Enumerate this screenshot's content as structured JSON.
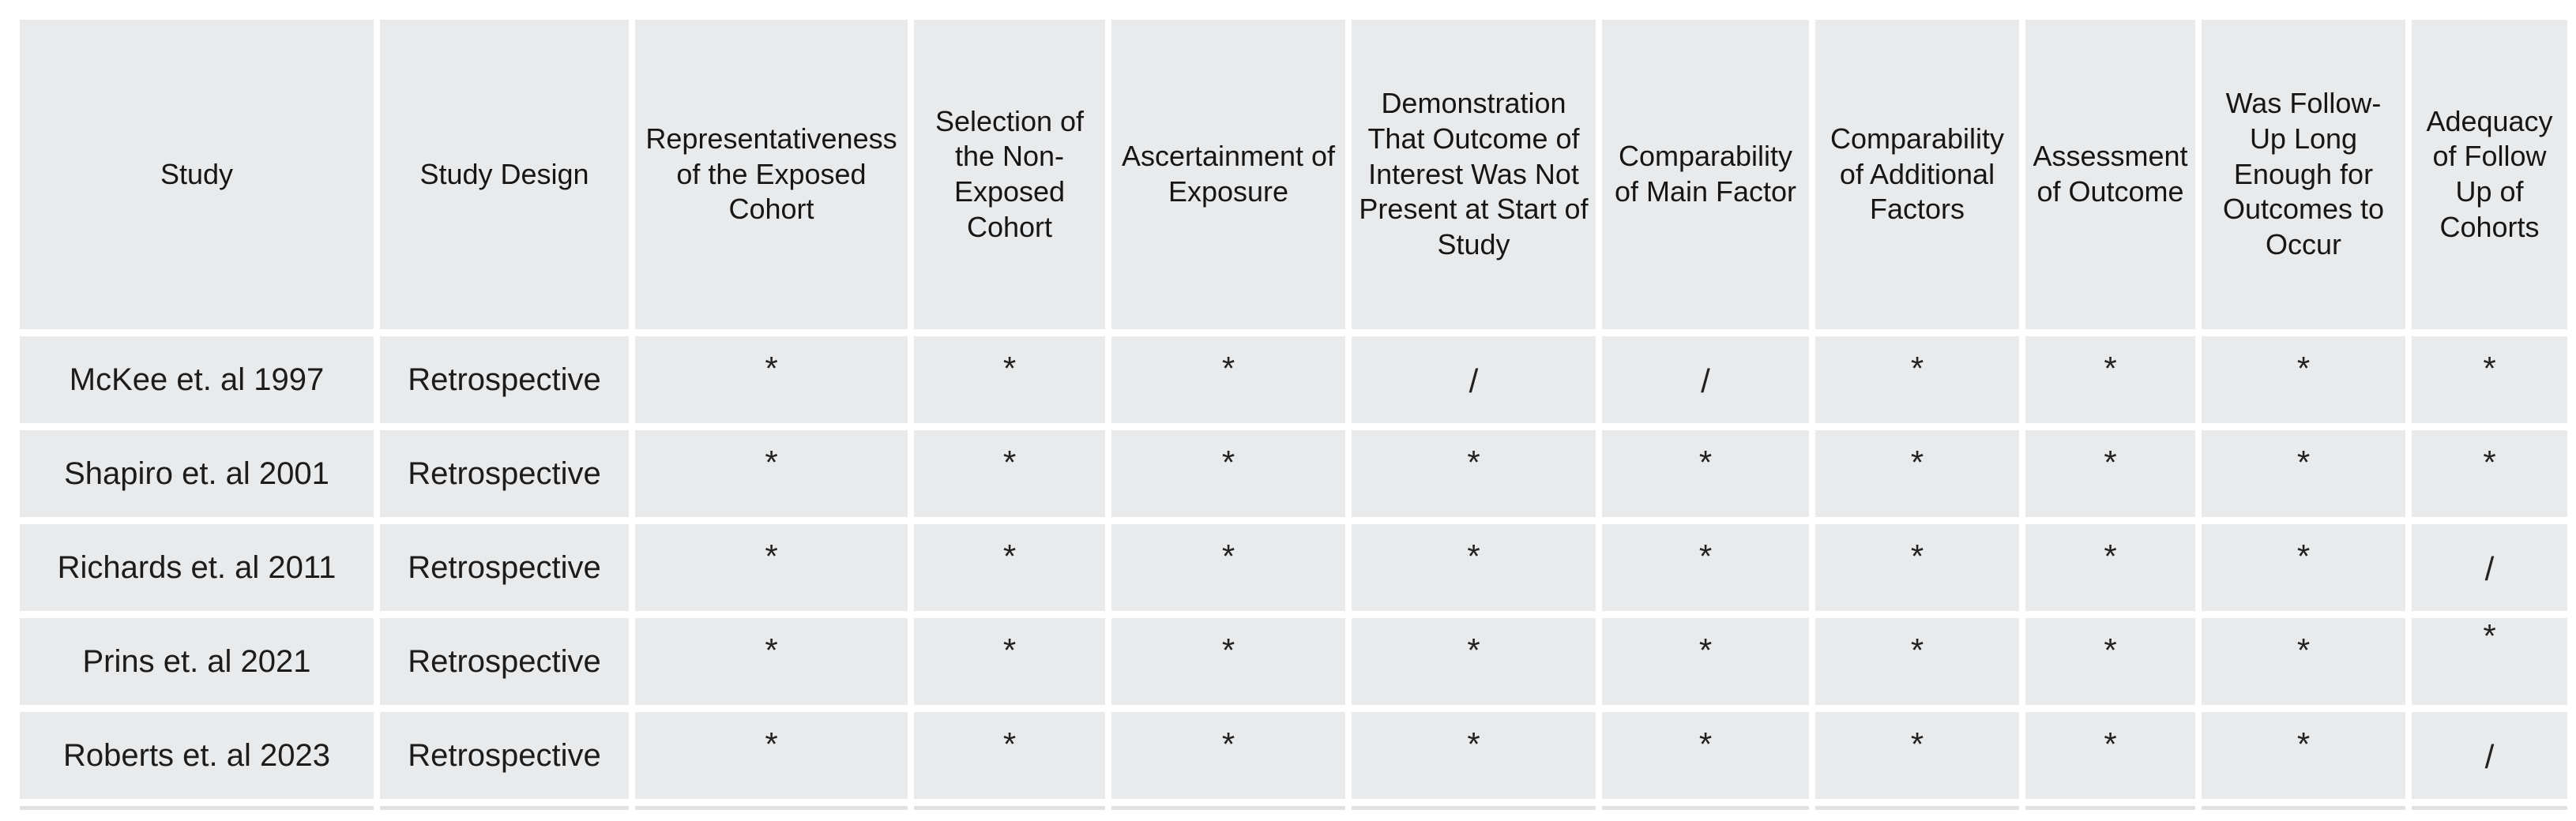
{
  "table": {
    "columns": [
      "Study",
      "Study Design",
      "Representativeness of the Exposed Cohort",
      "Selection of the Non-Exposed Cohort",
      "Ascertainment of Exposure",
      "Demonstration That Outcome of Interest Was Not Present at Start of Study",
      "Comparability of Main Factor",
      "Comparability of Additional Factors",
      "Assessment of Outcome",
      "Was Follow-Up Long Enough for Outcomes to Occur",
      "Adequacy of Follow Up of Cohorts"
    ],
    "rows": [
      {
        "cells": [
          "McKee et. al 1997",
          "Retrospective",
          "*",
          "*",
          "*",
          "/",
          "/",
          "*",
          "*",
          "*",
          "*"
        ]
      },
      {
        "cells": [
          "Shapiro et. al 2001",
          "Retrospective",
          "*",
          "*",
          "*",
          "*",
          "*",
          "*",
          "*",
          "*",
          "*"
        ]
      },
      {
        "cells": [
          "Richards et. al 2011",
          "Retrospective",
          "*",
          "*",
          "*",
          "*",
          "*",
          "*",
          "*",
          "*",
          "/"
        ]
      },
      {
        "cells": [
          "Prins et. al 2021",
          "Retrospective",
          "*",
          "*",
          "*",
          "*",
          "*",
          "*",
          "*",
          "*",
          "*"
        ]
      },
      {
        "cells": [
          "Roberts et. al 2023",
          "Retrospective",
          "*",
          "*",
          "*",
          "*",
          "*",
          "*",
          "*",
          "*",
          "/"
        ]
      }
    ],
    "colors": {
      "cell_bg": "#e8eaec",
      "gutter": "#ffffff",
      "text": "#1c1c1c",
      "partial_next_row": "#dfe3e6"
    }
  }
}
